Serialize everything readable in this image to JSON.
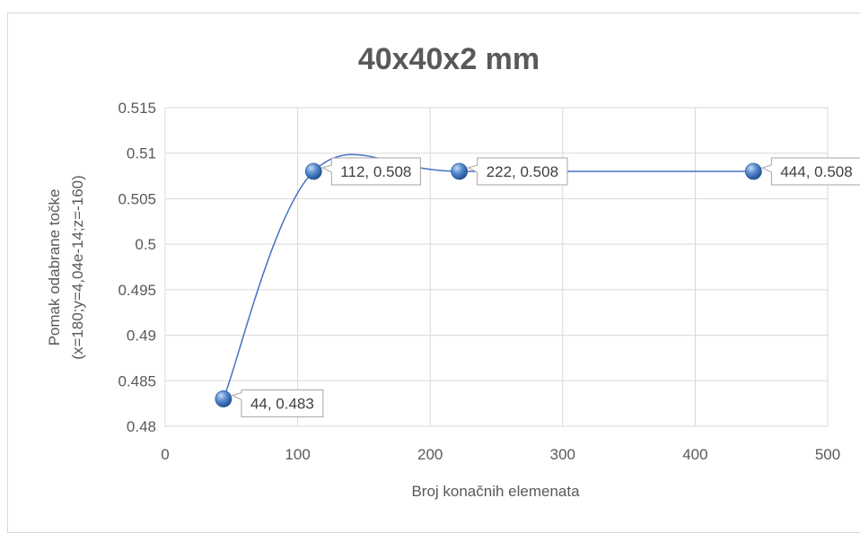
{
  "chart_data": {
    "type": "scatter",
    "title": "40x40x2 mm",
    "xlabel": "Broj konačnih elemenata",
    "ylabel_line1": "Pomak odabrane točke",
    "ylabel_line2": "(x=180;y=4,04e-14;z=-160)",
    "xlim": [
      0,
      500
    ],
    "ylim": [
      0.48,
      0.515
    ],
    "x_ticks": [
      "0",
      "100",
      "200",
      "300",
      "400",
      "500"
    ],
    "y_ticks": [
      "0.48",
      "0.485",
      "0.49",
      "0.495",
      "0.5",
      "0.505",
      "0.51",
      "0.515"
    ],
    "grid": true,
    "smooth_lines": true,
    "series": [
      {
        "x": [
          44,
          112,
          222,
          444
        ],
        "y": [
          0.483,
          0.508,
          0.508,
          0.508
        ],
        "labels": [
          "44, 0.483",
          "112, 0.508",
          "222, 0.508",
          "444, 0.508"
        ]
      }
    ],
    "colors": {
      "line": "#4472c4",
      "marker": "#4f81bd",
      "grid": "#d9d9d9"
    }
  }
}
